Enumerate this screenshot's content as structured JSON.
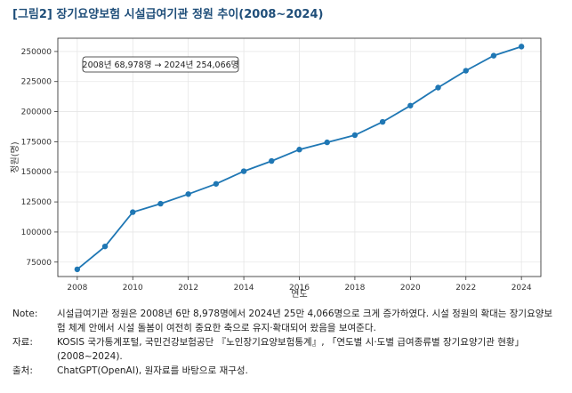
{
  "title": "[그림2] 장기요양보험 시설급여기관 정원 추이(2008~2024)",
  "chart_data": {
    "type": "line",
    "xlabel": "연도",
    "ylabel": "정원(명)",
    "xlim": [
      2007.3,
      2024.7
    ],
    "ylim": [
      63000,
      261000
    ],
    "x_ticks": [
      2008,
      2010,
      2012,
      2014,
      2016,
      2018,
      2020,
      2022,
      2024
    ],
    "y_ticks": [
      75000,
      100000,
      125000,
      150000,
      175000,
      200000,
      225000,
      250000
    ],
    "grid": true,
    "color": "#1f77b4",
    "x": [
      2008,
      2009,
      2010,
      2011,
      2012,
      2013,
      2014,
      2015,
      2016,
      2017,
      2018,
      2019,
      2020,
      2021,
      2022,
      2023,
      2024
    ],
    "values": [
      68978,
      88000,
      116500,
      123500,
      131500,
      140000,
      150500,
      159000,
      168500,
      174500,
      180500,
      191500,
      205000,
      220000,
      234000,
      246500,
      254066
    ],
    "annotation": "2008년 68,978명 → 2024년 254,066명"
  },
  "notes": [
    {
      "key": "Note:",
      "text": "시설급여기관 정원은 2008년 6만 8,978명에서 2024년 25만 4,066명으로 크게 증가하였다. 시설 정원의 확대는 장기요양보험 체계 안에서 시설 돌봄이 여전히 중요한 축으로 유지·확대되어 왔음을 보여준다."
    },
    {
      "key": "자료:",
      "text": "KOSIS 국가통계포털, 국민건강보험공단 『노인장기요양보험통계』, 「연도별 시·도별 급여종류별 장기요양기관 현황」(2008~2024)."
    },
    {
      "key": "출처:",
      "text": "ChatGPT(OpenAI), 원자료를 바탕으로 재구성."
    }
  ]
}
